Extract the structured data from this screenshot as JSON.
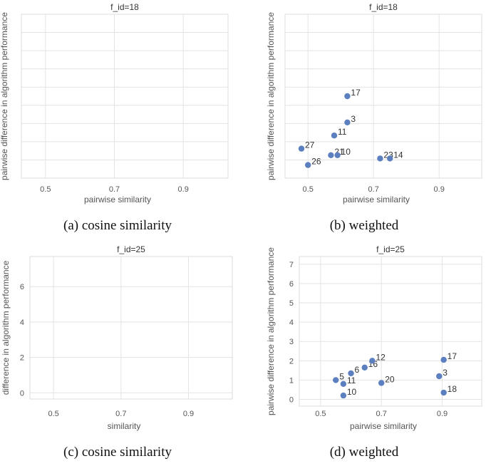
{
  "chart_data": [
    {
      "id": "a",
      "type": "scatter",
      "title": "f_id=18",
      "xlabel": "pairwise similarity",
      "ylabel": "pairwise difference in algorithm performance",
      "xticks": [
        "0.5",
        "0.7",
        "0.9"
      ],
      "yticks": [],
      "points": [],
      "caption": "(a) cosine similarity"
    },
    {
      "id": "b",
      "type": "scatter",
      "title": "f_id=18",
      "xlabel": "pairwise similarity",
      "ylabel": "pairwise difference in algorithm performance",
      "xticks": [
        "0.5",
        "0.7",
        "0.9"
      ],
      "yticks": [],
      "points": [
        {
          "label": "17",
          "x": 0.62,
          "y": 3.0
        },
        {
          "label": "3",
          "x": 0.62,
          "y": 2.2
        },
        {
          "label": "11",
          "x": 0.58,
          "y": 1.8
        },
        {
          "label": "27",
          "x": 0.48,
          "y": 1.4
        },
        {
          "label": "26",
          "x": 0.5,
          "y": 0.9
        },
        {
          "label": "21",
          "x": 0.57,
          "y": 1.2
        },
        {
          "label": "10",
          "x": 0.59,
          "y": 1.2
        },
        {
          "label": "23",
          "x": 0.72,
          "y": 1.1
        },
        {
          "label": "14",
          "x": 0.75,
          "y": 1.1
        }
      ],
      "caption": "(b) weighted"
    },
    {
      "id": "c",
      "type": "scatter",
      "title": "f_id=25",
      "xlabel": "similarity",
      "ylabel": "difference in algorithm performance",
      "xticks": [
        "0.5",
        "0.7",
        "0.9"
      ],
      "yticks": [
        "0",
        "2",
        "4",
        "6"
      ],
      "points": [],
      "caption": "(c) cosine similarity"
    },
    {
      "id": "d",
      "type": "scatter",
      "title": "f_id=25",
      "xlabel": "pairwise similarity",
      "ylabel": "pairwise difference in algorithm performance",
      "xticks": [
        "0.5",
        "0.7",
        "0.9"
      ],
      "yticks": [
        "0",
        "1",
        "2",
        "3",
        "4",
        "5",
        "6",
        "7"
      ],
      "points": [
        {
          "label": "5",
          "x": 0.55,
          "y": 1.0
        },
        {
          "label": "11",
          "x": 0.575,
          "y": 0.8
        },
        {
          "label": "6",
          "x": 0.6,
          "y": 1.35
        },
        {
          "label": "16",
          "x": 0.645,
          "y": 1.65
        },
        {
          "label": "12",
          "x": 0.67,
          "y": 2.0
        },
        {
          "label": "10",
          "x": 0.575,
          "y": 0.2
        },
        {
          "label": "20",
          "x": 0.7,
          "y": 0.85
        },
        {
          "label": "17",
          "x": 0.905,
          "y": 2.05
        },
        {
          "label": "3",
          "x": 0.89,
          "y": 1.2
        },
        {
          "label": "18",
          "x": 0.905,
          "y": 0.35
        }
      ],
      "caption": "(d) weighted"
    }
  ]
}
